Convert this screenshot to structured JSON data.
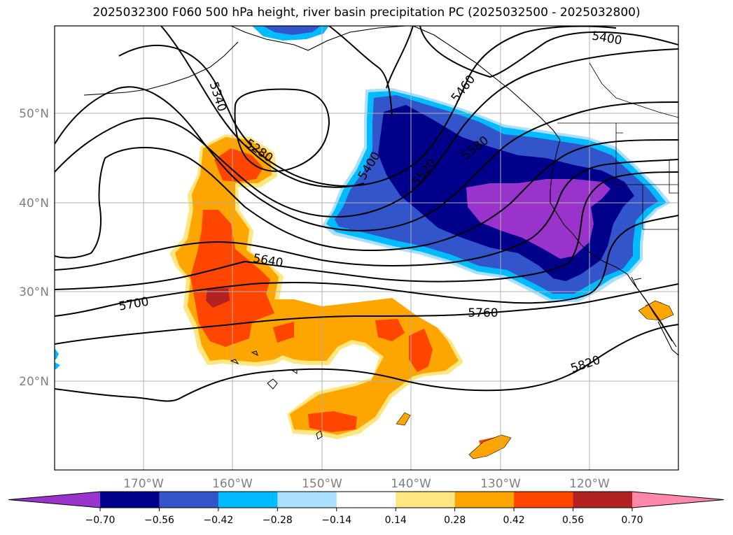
{
  "title": "2025032300 F060 500 hPa height, river basin precipitation PC (2025032500 - 2025032800)",
  "map": {
    "lat_labels": [
      "50°N",
      "40°N",
      "30°N",
      "20°N"
    ],
    "lon_labels": [
      "170°W",
      "160°W",
      "150°W",
      "140°W",
      "130°W",
      "120°W"
    ],
    "contour_labels": [
      "5280",
      "5340",
      "5400",
      "5400",
      "5460",
      "5520",
      "5580",
      "5640",
      "5700",
      "5760",
      "5820"
    ]
  },
  "colorbar": {
    "tick_labels": [
      "−0.70",
      "−0.56",
      "−0.42",
      "−0.28",
      "−0.14",
      "0.14",
      "0.28",
      "0.42",
      "0.56",
      "0.70"
    ],
    "colors": [
      "#9933cc",
      "#00008b",
      "#3355cc",
      "#00bbff",
      "#aadfff",
      "#ffffff",
      "#ffe680",
      "#ffa500",
      "#ff4500",
      "#b22222",
      "#ff88aa"
    ]
  },
  "colors": {
    "neg_deep": "#9933cc",
    "neg_navy": "#00008b",
    "neg_blue": "#3355cc",
    "neg_cyan": "#00bbff",
    "neg_light": "#aadfff",
    "pos_yellow": "#ffe680",
    "pos_orange": "#ffa500",
    "pos_red": "#ff4500",
    "pos_dark": "#b22222"
  }
}
